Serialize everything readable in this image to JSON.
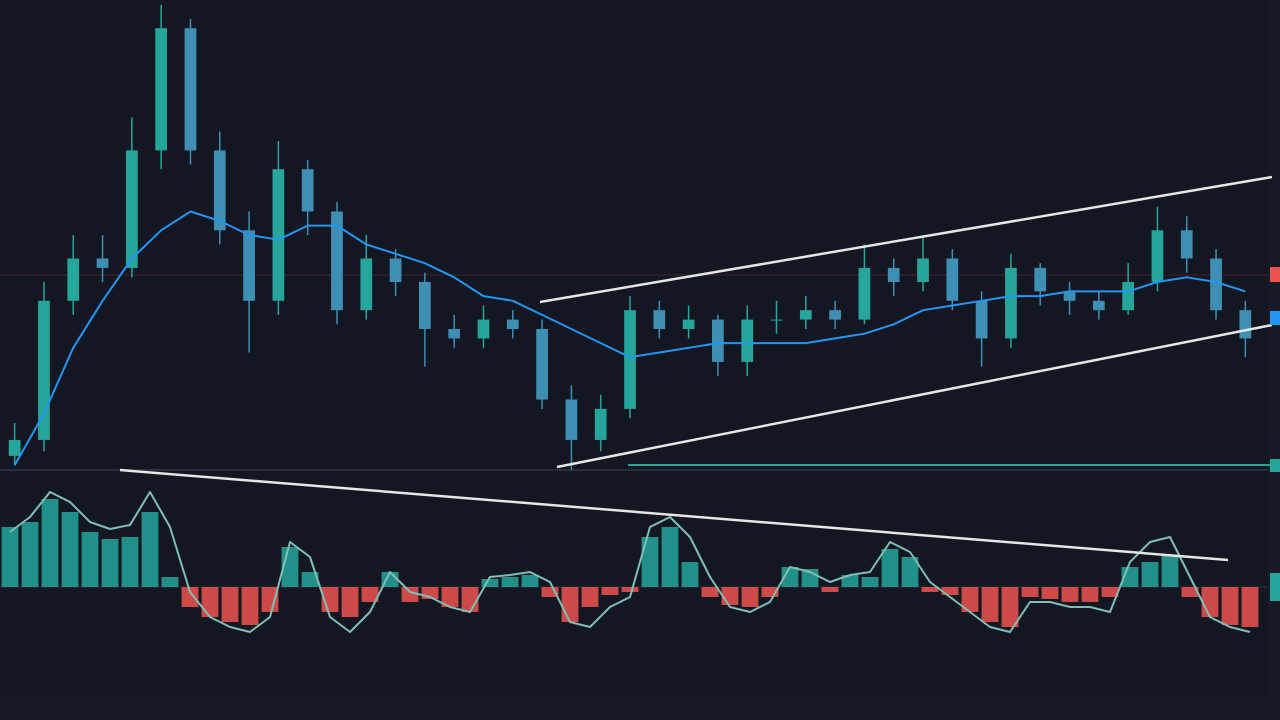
{
  "chart_data": [
    {
      "type": "candlestick",
      "open": [
        3,
        6.4,
        36,
        45,
        43,
        68,
        94,
        68,
        51,
        36,
        64,
        55,
        34,
        45,
        40,
        30,
        28,
        32,
        30,
        15,
        6.4,
        13,
        34,
        30,
        32,
        23,
        32,
        32,
        34,
        32,
        43,
        40,
        45,
        36,
        28,
        43,
        38,
        36,
        34,
        40,
        51,
        45,
        34
      ],
      "high": [
        10,
        40,
        50,
        50,
        75,
        99,
        96,
        72,
        55,
        70,
        66,
        57,
        50,
        47,
        42,
        33,
        35,
        34,
        32,
        18,
        16,
        37,
        36,
        35,
        33,
        35,
        36,
        37,
        36,
        48,
        45,
        50,
        47,
        38,
        46,
        44,
        40,
        38,
        44,
        56,
        54,
        47,
        36
      ],
      "low": [
        1,
        4,
        33,
        40,
        41,
        64,
        65,
        48,
        25,
        33,
        50,
        31,
        32,
        37,
        22,
        26,
        26,
        28,
        13,
        0,
        4,
        11,
        28,
        28,
        20,
        20,
        29,
        30,
        30,
        31,
        37,
        38,
        34,
        22,
        26,
        35,
        33,
        32,
        33,
        38,
        42,
        32,
        24
      ],
      "close": [
        6.4,
        36,
        45,
        43,
        68,
        94,
        68,
        51,
        36,
        64,
        55,
        34,
        45,
        40,
        30,
        28,
        32,
        30,
        15,
        6.4,
        13,
        34,
        30,
        32,
        23,
        32,
        32,
        34,
        32,
        43,
        40,
        45,
        36,
        28,
        43,
        38,
        36,
        34,
        40,
        51,
        45,
        34,
        28
      ],
      "up_color": "#26a69a",
      "down_color": "#3f8fb5",
      "ma": {
        "color": "#2196f3",
        "values": [
          1,
          12,
          26,
          36,
          45,
          51,
          55,
          53,
          50,
          49,
          52,
          52,
          48,
          46,
          44,
          41,
          37,
          36,
          33,
          30,
          27,
          24,
          25,
          26,
          27,
          27,
          27,
          27,
          28,
          29,
          31,
          34,
          35,
          36,
          37,
          37,
          38,
          38,
          38,
          40,
          41,
          40,
          38
        ]
      },
      "ylim": [
        0,
        100
      ]
    },
    {
      "type": "bar",
      "values": [
        60,
        65,
        88,
        75,
        55,
        48,
        50,
        75,
        10,
        -20,
        -30,
        -35,
        -38,
        -25,
        40,
        15,
        -25,
        -30,
        -15,
        15,
        -15,
        -12,
        -20,
        -25,
        8,
        10,
        12,
        -10,
        -35,
        -20,
        -8,
        -5,
        50,
        60,
        25,
        -10,
        -18,
        -20,
        -10,
        20,
        18,
        -5,
        12,
        10,
        38,
        30,
        -5,
        -8,
        -25,
        -35,
        -40,
        -10,
        -12,
        -15,
        -15,
        -10,
        20,
        25,
        32,
        -10,
        -30,
        -38,
        -40
      ],
      "pos_color": "#26a69a",
      "neg_color": "#ef5350",
      "signal": {
        "color": "#7fbfb5",
        "values": [
          55,
          70,
          95,
          85,
          65,
          58,
          62,
          95,
          60,
          -5,
          -30,
          -40,
          -45,
          -30,
          45,
          30,
          -30,
          -45,
          -25,
          15,
          -5,
          -10,
          -20,
          -25,
          10,
          12,
          15,
          5,
          -35,
          -40,
          -20,
          -10,
          60,
          70,
          50,
          10,
          -20,
          -25,
          -15,
          20,
          15,
          5,
          12,
          15,
          45,
          35,
          5,
          -10,
          -25,
          -40,
          -45,
          -15,
          -15,
          -20,
          -20,
          -25,
          25,
          45,
          50,
          10,
          -30,
          -40,
          -45
        ]
      },
      "ylim": [
        -60,
        100
      ]
    }
  ]
}
